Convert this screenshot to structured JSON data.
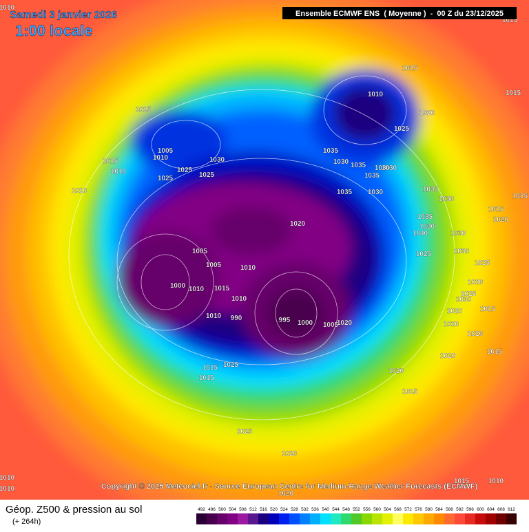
{
  "header": {
    "date": "Samedi 3 janvier 2026",
    "time": "1:00 locale",
    "model": "Ensemble ECMWF ENS  ( Moyenne )  -  00 Z du 23/12/2025"
  },
  "copyright": "Copyright © 2025 Meteociel.fr - Source European Centre for Medium-Range Weather Forecasts (ECMWF)",
  "legend": {
    "title": "Géop. Z500 & pression au sol",
    "subtitle": "(+ 264h)",
    "values": [
      "492",
      "496",
      "500",
      "504",
      "508",
      "512",
      "516",
      "520",
      "524",
      "528",
      "532",
      "536",
      "540",
      "544",
      "548",
      "552",
      "556",
      "560",
      "564",
      "568",
      "572",
      "576",
      "580",
      "584",
      "588",
      "592",
      "596",
      "600",
      "604",
      "608",
      "612"
    ],
    "colors": [
      "#2a0034",
      "#48004e",
      "#66006a",
      "#820084",
      "#9c1aa2",
      "#5a1890",
      "#1a0080",
      "#0000b8",
      "#0020f0",
      "#0050ff",
      "#0080ff",
      "#00b0ff",
      "#00e0ff",
      "#20e8c0",
      "#30d870",
      "#50c828",
      "#88d800",
      "#b8e400",
      "#e4f000",
      "#ffff60",
      "#ffe800",
      "#ffc800",
      "#ffa800",
      "#ff8a00",
      "#ff6a30",
      "#ff4a3a",
      "#e82a20",
      "#c80c0c",
      "#a00000",
      "#700000",
      "#380000"
    ]
  },
  "isobar_labels": [
    "1010",
    "1015",
    "1015",
    "1015",
    "1015",
    "1010",
    "1020",
    "1015",
    "1010",
    "1005",
    "1010",
    "1025",
    "1025",
    "1030",
    "1025",
    "1010",
    "1030",
    "1035",
    "1030",
    "1035",
    "1030",
    "1035",
    "1035",
    "1030",
    "1025",
    "1015",
    "1035",
    "1030",
    "1035",
    "1030",
    "1040",
    "1020",
    "1015",
    "1020",
    "1030",
    "1025",
    "1030",
    "1025",
    "1020",
    "1030",
    "1025",
    "1020",
    "1015",
    "1020",
    "1020",
    "1015",
    "1020",
    "1005",
    "1005",
    "1010",
    "1000",
    "1010",
    "1015",
    "1010",
    "1010",
    "990",
    "995",
    "1000",
    "1005",
    "1020",
    "1015",
    "1025",
    "1015",
    "1020",
    "1015",
    "1025",
    "1020",
    "1020",
    "1015",
    "1010",
    "1010",
    "1010"
  ]
}
